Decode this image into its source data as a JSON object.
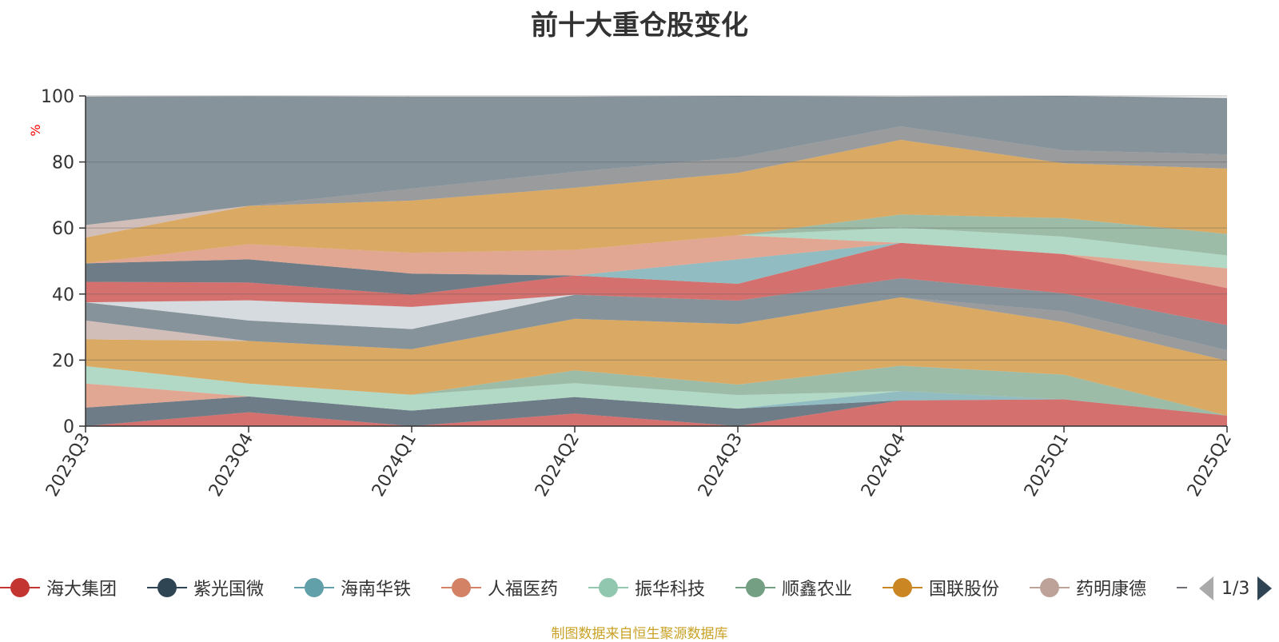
{
  "chart_data": {
    "type": "area",
    "stacked": true,
    "title": "前十大重仓股变化",
    "ylabel": "%",
    "ylim": [
      0,
      100
    ],
    "yticks": [
      0,
      20,
      40,
      60,
      80,
      100
    ],
    "grid": true,
    "legend_position": "bottom",
    "categories": [
      "2023Q3",
      "2023Q4",
      "2024Q1",
      "2024Q2",
      "2024Q3",
      "2024Q4",
      "2025Q1",
      "2025Q2"
    ],
    "series": [
      {
        "name": "海大集团",
        "color": "#c23531",
        "values": [
          0,
          4.2,
          0,
          3.8,
          0,
          7.8,
          8.1,
          3.2
        ]
      },
      {
        "name": "紫光国微",
        "color": "#2f4554",
        "values": [
          5.6,
          4.8,
          4.7,
          5.0,
          5.3,
          0,
          0,
          0
        ]
      },
      {
        "name": "海南华铁",
        "color": "#61a0a8",
        "values": [
          0,
          0,
          0,
          0,
          0,
          2.8,
          0,
          0
        ]
      },
      {
        "name": "人福医药",
        "color": "#d48265",
        "values": [
          7.3,
          0,
          0,
          0,
          0,
          0,
          0,
          0
        ]
      },
      {
        "name": "振华科技",
        "color": "#91c7ae",
        "values": [
          5.3,
          3.9,
          4.8,
          4.2,
          4.1,
          0,
          0,
          0
        ]
      },
      {
        "name": "顺鑫农业",
        "color": "#749f83",
        "values": [
          0,
          0,
          0,
          3.9,
          3.2,
          7.7,
          7.5,
          0
        ]
      },
      {
        "name": "国联股份",
        "color": "#ca8622",
        "values": [
          8.1,
          12.9,
          13.8,
          15.6,
          18.3,
          20.7,
          15.9,
          16.6
        ]
      },
      {
        "name": "药明康德",
        "color": "#bda29a",
        "values": [
          5.7,
          0,
          0,
          0,
          0,
          0,
          0,
          0
        ]
      },
      {
        "name": "",
        "color": "#6e7074",
        "values": [
          0,
          0,
          0,
          0,
          0,
          0,
          3.3,
          3.2
        ]
      },
      {
        "name": "",
        "color": "#546570",
        "values": [
          5.5,
          6.2,
          6.1,
          7.3,
          7.1,
          5.8,
          5.4,
          7.6
        ]
      },
      {
        "name": "",
        "color": "#c4ccd3",
        "values": [
          0,
          6.1,
          6.7,
          0,
          0,
          0,
          0,
          0
        ]
      },
      {
        "name": "",
        "color": "#c23531",
        "values": [
          6.2,
          5.4,
          3.7,
          5.8,
          5.1,
          10.7,
          11.9,
          11.2
        ]
      },
      {
        "name": "",
        "color": "#2f4554",
        "values": [
          5.6,
          7.0,
          6.4,
          0,
          0,
          0,
          0,
          0
        ]
      },
      {
        "name": "",
        "color": "#61a0a8",
        "values": [
          0,
          0,
          0,
          0,
          7.4,
          0,
          0,
          0
        ]
      },
      {
        "name": "",
        "color": "#d48265",
        "values": [
          0,
          4.6,
          6.3,
          7.8,
          7.3,
          0,
          0,
          6.0
        ]
      },
      {
        "name": "",
        "color": "#91c7ae",
        "values": [
          0,
          0,
          0,
          0,
          0,
          4.6,
          5.3,
          3.9
        ]
      },
      {
        "name": "",
        "color": "#749f83",
        "values": [
          0,
          0,
          0,
          0,
          0,
          4.0,
          5.6,
          6.5
        ]
      },
      {
        "name": "",
        "color": "#ca8622",
        "values": [
          7.8,
          11.6,
          15.8,
          18.8,
          18.9,
          22.6,
          16.6,
          19.8
        ]
      },
      {
        "name": "",
        "color": "#bda29a",
        "values": [
          3.8,
          0,
          0,
          0,
          0,
          0,
          0,
          0
        ]
      },
      {
        "name": "",
        "color": "#6e7074",
        "values": [
          0,
          0,
          3.6,
          4.8,
          4.7,
          4.1,
          3.9,
          4.3
        ]
      },
      {
        "name": "",
        "color": "#546570",
        "values": [
          38.9,
          33.2,
          27.9,
          22.8,
          18.6,
          9.0,
          16.5,
          17.1
        ]
      }
    ]
  },
  "legend": {
    "items": [
      {
        "label": "海大集团",
        "color": "#c23531"
      },
      {
        "label": "紫光国微",
        "color": "#2f4554"
      },
      {
        "label": "海南华铁",
        "color": "#61a0a8"
      },
      {
        "label": "人福医药",
        "color": "#d48265"
      },
      {
        "label": "振华科技",
        "color": "#91c7ae"
      },
      {
        "label": "顺鑫农业",
        "color": "#749f83"
      },
      {
        "label": "国联股份",
        "color": "#ca8622"
      },
      {
        "label": "药明康德",
        "color": "#bda29a"
      },
      {
        "label": "",
        "color": "#6e7074"
      }
    ],
    "pager_text": "1/3"
  },
  "source_note": "制图数据来自恒生聚源数据库"
}
